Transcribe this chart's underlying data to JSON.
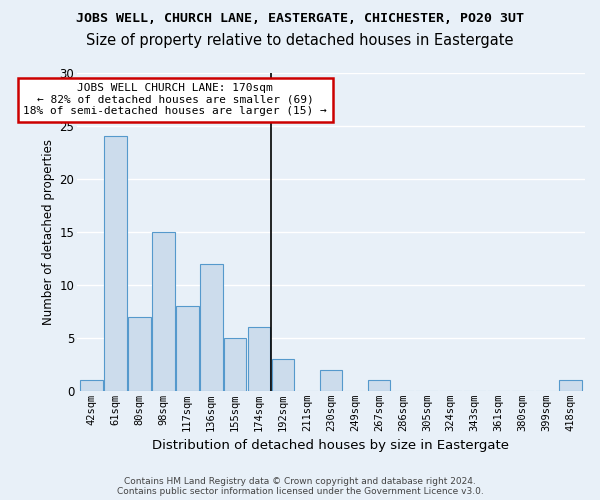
{
  "title": "JOBS WELL, CHURCH LANE, EASTERGATE, CHICHESTER, PO20 3UT",
  "subtitle": "Size of property relative to detached houses in Eastergate",
  "xlabel": "Distribution of detached houses by size in Eastergate",
  "ylabel": "Number of detached properties",
  "categories": [
    "42sqm",
    "61sqm",
    "80sqm",
    "98sqm",
    "117sqm",
    "136sqm",
    "155sqm",
    "174sqm",
    "192sqm",
    "211sqm",
    "230sqm",
    "249sqm",
    "267sqm",
    "286sqm",
    "305sqm",
    "324sqm",
    "343sqm",
    "361sqm",
    "380sqm",
    "399sqm",
    "418sqm"
  ],
  "values": [
    1,
    24,
    7,
    15,
    8,
    12,
    5,
    6,
    3,
    0,
    2,
    0,
    1,
    0,
    0,
    0,
    0,
    0,
    0,
    0,
    1
  ],
  "bar_color": "#ccdcec",
  "bar_edge_color": "#5599cc",
  "vline_x": 7.5,
  "vline_color": "#000000",
  "annotation_text": "JOBS WELL CHURCH LANE: 170sqm\n← 82% of detached houses are smaller (69)\n18% of semi-detached houses are larger (15) →",
  "annotation_box_facecolor": "#ffffff",
  "annotation_box_edgecolor": "#cc0000",
  "ylim": [
    0,
    30
  ],
  "yticks": [
    0,
    5,
    10,
    15,
    20,
    25,
    30
  ],
  "background_color": "#e8f0f8",
  "grid_color": "#ffffff",
  "title_fontsize": 9.5,
  "subtitle_fontsize": 10.5,
  "xlabel_fontsize": 9.5,
  "ylabel_fontsize": 8.5,
  "tick_fontsize": 7.5,
  "annotation_fontsize": 8,
  "footer_fontsize": 6.5,
  "footer_color": "#444444",
  "footer": "Contains HM Land Registry data © Crown copyright and database right 2024.\nContains public sector information licensed under the Government Licence v3.0."
}
